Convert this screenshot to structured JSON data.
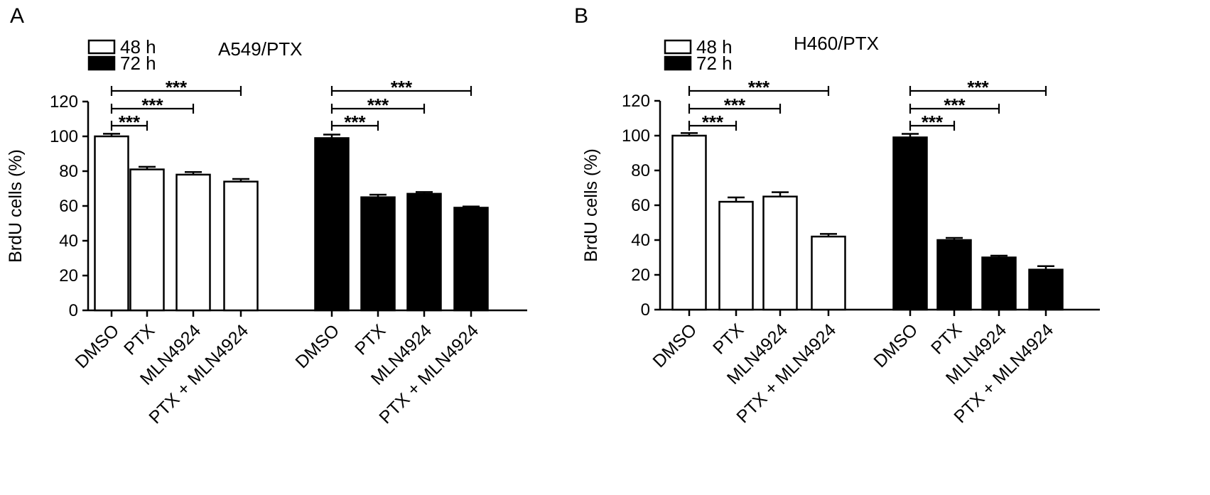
{
  "figure": {
    "panels": [
      "A",
      "B"
    ]
  },
  "chart_data": [
    {
      "panel": "A",
      "type": "bar",
      "title": "A549/PTX",
      "ylabel": "BrdU cells (%)",
      "xlabel": "",
      "ylim": [
        0,
        120
      ],
      "yticks": [
        0,
        20,
        40,
        60,
        80,
        100,
        120
      ],
      "grid": false,
      "legend_position": "top-left",
      "categories": [
        "DMSO",
        "PTX",
        "MLN4924",
        "PTX + MLN4924"
      ],
      "series": [
        {
          "name": "48 h",
          "color": "#ffffff",
          "values": [
            100,
            81,
            78,
            74
          ],
          "errors": [
            1.5,
            1.5,
            1.5,
            1.5
          ]
        },
        {
          "name": "72 h",
          "color": "#000000",
          "values": [
            99,
            65,
            67,
            59
          ],
          "errors": [
            2,
            1.5,
            1,
            0.7
          ]
        }
      ],
      "significance": [
        {
          "series": 0,
          "from": 0,
          "to": 1,
          "label": "***"
        },
        {
          "series": 0,
          "from": 0,
          "to": 2,
          "label": "***"
        },
        {
          "series": 0,
          "from": 0,
          "to": 3,
          "label": "***"
        },
        {
          "series": 1,
          "from": 0,
          "to": 1,
          "label": "***"
        },
        {
          "series": 1,
          "from": 0,
          "to": 2,
          "label": "***"
        },
        {
          "series": 1,
          "from": 0,
          "to": 3,
          "label": "***"
        }
      ]
    },
    {
      "panel": "B",
      "type": "bar",
      "title": "H460/PTX",
      "ylabel": "BrdU cells (%)",
      "xlabel": "",
      "ylim": [
        0,
        120
      ],
      "yticks": [
        0,
        20,
        40,
        60,
        80,
        100,
        120
      ],
      "grid": false,
      "legend_position": "top-left",
      "categories": [
        "DMSO",
        "PTX",
        "MLN4924",
        "PTX + MLN4924"
      ],
      "series": [
        {
          "name": "48 h",
          "color": "#ffffff",
          "values": [
            100,
            62,
            65,
            42
          ],
          "errors": [
            1.5,
            2.5,
            2.5,
            1.5
          ]
        },
        {
          "name": "72 h",
          "color": "#000000",
          "values": [
            99,
            40,
            30,
            23
          ],
          "errors": [
            2,
            1.2,
            1,
            2
          ]
        }
      ],
      "significance": [
        {
          "series": 0,
          "from": 0,
          "to": 1,
          "label": "***"
        },
        {
          "series": 0,
          "from": 0,
          "to": 2,
          "label": "***"
        },
        {
          "series": 0,
          "from": 0,
          "to": 3,
          "label": "***"
        },
        {
          "series": 1,
          "from": 0,
          "to": 1,
          "label": "***"
        },
        {
          "series": 1,
          "from": 0,
          "to": 2,
          "label": "***"
        },
        {
          "series": 1,
          "from": 0,
          "to": 3,
          "label": "***"
        }
      ]
    }
  ]
}
